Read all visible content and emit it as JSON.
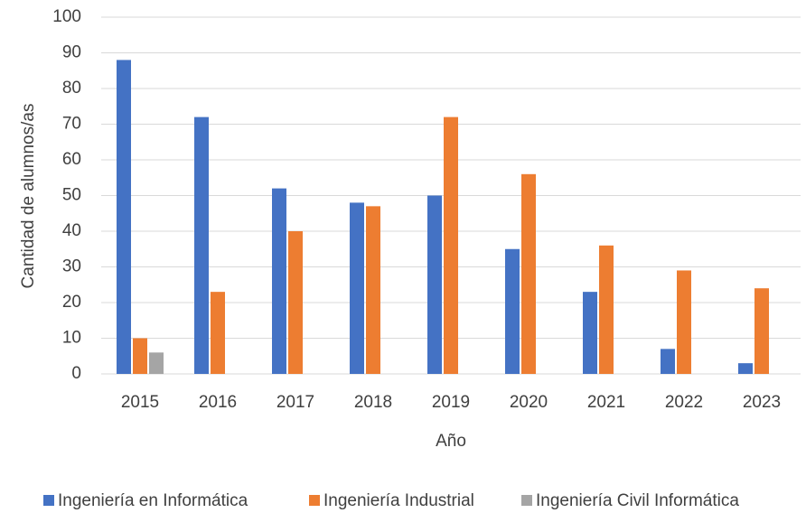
{
  "chart_data": {
    "type": "bar",
    "x_label": "Año",
    "y_label": "Cantidad de alumnos/as",
    "categories": [
      "2015",
      "2016",
      "2017",
      "2018",
      "2019",
      "2020",
      "2021",
      "2022",
      "2023"
    ],
    "series": [
      {
        "name": "Ingeniería en Informática",
        "color": "#4472c4",
        "values": [
          88,
          72,
          52,
          48,
          50,
          35,
          23,
          7,
          3
        ]
      },
      {
        "name": "Ingeniería Industrial",
        "color": "#ed7d31",
        "values": [
          10,
          23,
          40,
          47,
          72,
          56,
          36,
          29,
          24
        ]
      },
      {
        "name": "Ingeniería Civil Informática",
        "color": "#a5a5a5",
        "values": [
          6,
          0,
          0,
          0,
          0,
          0,
          0,
          0,
          0
        ]
      }
    ],
    "ylim": [
      0,
      100
    ],
    "yticks": [
      0,
      10,
      20,
      30,
      40,
      50,
      60,
      70,
      80,
      90,
      100
    ],
    "grid": true,
    "legend": "bottom"
  }
}
